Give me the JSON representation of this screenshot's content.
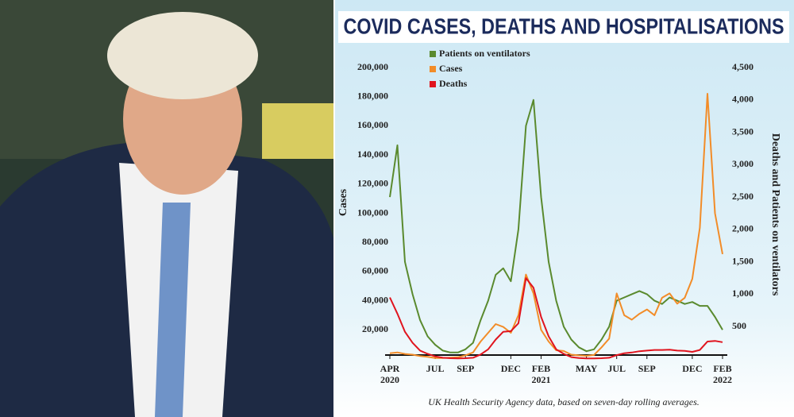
{
  "chart_data": {
    "type": "line",
    "title": "COVID CASES, DEATHS AND HOSPITALISATIONS",
    "y_label": "Cases",
    "y2_label": "Deaths and Patients on ventilators",
    "source": "UK Health Security Agency data, based on seven-day rolling averages.",
    "categories": [
      "APR 2020",
      null,
      null,
      null,
      null,
      null,
      "JUL",
      null,
      null,
      null,
      "SEP",
      null,
      null,
      null,
      null,
      null,
      "DEC",
      null,
      null,
      null,
      "FEB 2021",
      null,
      null,
      null,
      null,
      null,
      "MAY",
      null,
      null,
      null,
      "JUL",
      null,
      null,
      null,
      "SEP",
      null,
      null,
      null,
      null,
      null,
      "DEC",
      null,
      null,
      null,
      "FEB 2022"
    ],
    "series": [
      {
        "name": "Patients on ventilators",
        "color": "#5a8a2e",
        "axis": "y2",
        "values": [
          2500,
          3300,
          1500,
          1000,
          600,
          350,
          220,
          130,
          100,
          100,
          150,
          250,
          600,
          900,
          1300,
          1400,
          1200,
          2000,
          3600,
          4000,
          2500,
          1500,
          900,
          500,
          300,
          180,
          120,
          150,
          300,
          500,
          900,
          950,
          1000,
          1050,
          1000,
          900,
          850,
          950,
          900,
          850,
          880,
          820,
          820,
          650,
          450
        ]
      },
      {
        "name": "Cases",
        "color": "#f28c28",
        "values": [
          4000,
          4500,
          3500,
          3000,
          2000,
          1500,
          700,
          700,
          900,
          1200,
          2500,
          4500,
          12000,
          18000,
          24000,
          22000,
          18000,
          30000,
          58000,
          45000,
          20000,
          12000,
          6000,
          5500,
          3000,
          2500,
          2200,
          2800,
          8000,
          14000,
          45000,
          30000,
          27000,
          31000,
          34000,
          30000,
          42000,
          45000,
          38000,
          42000,
          55000,
          90000,
          182000,
          100000,
          72000
        ]
      },
      {
        "name": "Deaths",
        "color": "#e0141e",
        "axis": "y2",
        "values": [
          950,
          700,
          420,
          250,
          130,
          80,
          40,
          20,
          12,
          10,
          12,
          20,
          70,
          150,
          300,
          420,
          430,
          550,
          1250,
          1100,
          650,
          350,
          150,
          80,
          30,
          15,
          10,
          10,
          12,
          20,
          60,
          90,
          100,
          120,
          130,
          140,
          140,
          145,
          130,
          125,
          110,
          140,
          270,
          280,
          260
        ]
      }
    ],
    "ylim": [
      0,
      200000
    ],
    "yticks": [
      {
        "value": 20000,
        "label": "20,000"
      },
      {
        "value": 40000,
        "label": "40,000"
      },
      {
        "value": 60000,
        "label": "60,000"
      },
      {
        "value": 80000,
        "label": "80,000"
      },
      {
        "value": 100000,
        "label": "100,000"
      },
      {
        "value": 120000,
        "label": "120,000"
      },
      {
        "value": 140000,
        "label": "140,000"
      },
      {
        "value": 160000,
        "label": "160,000"
      },
      {
        "value": 180000,
        "label": "180,000"
      },
      {
        "value": 200000,
        "label": "200,000"
      }
    ],
    "y2lim": [
      0,
      4500
    ],
    "y2ticks": [
      500,
      {
        "value": 1000,
        "label": "1,000"
      },
      {
        "value": 1500,
        "label": "1,500"
      },
      {
        "value": 2000,
        "label": "2,000"
      },
      {
        "value": 2500,
        "label": "2,500"
      },
      {
        "value": 3000,
        "label": "3,000"
      },
      {
        "value": 3500,
        "label": "3,500"
      },
      {
        "value": 4000,
        "label": "4,000"
      },
      {
        "value": 4500,
        "label": "4,500"
      }
    ],
    "legend": "top-left",
    "grid": false
  }
}
